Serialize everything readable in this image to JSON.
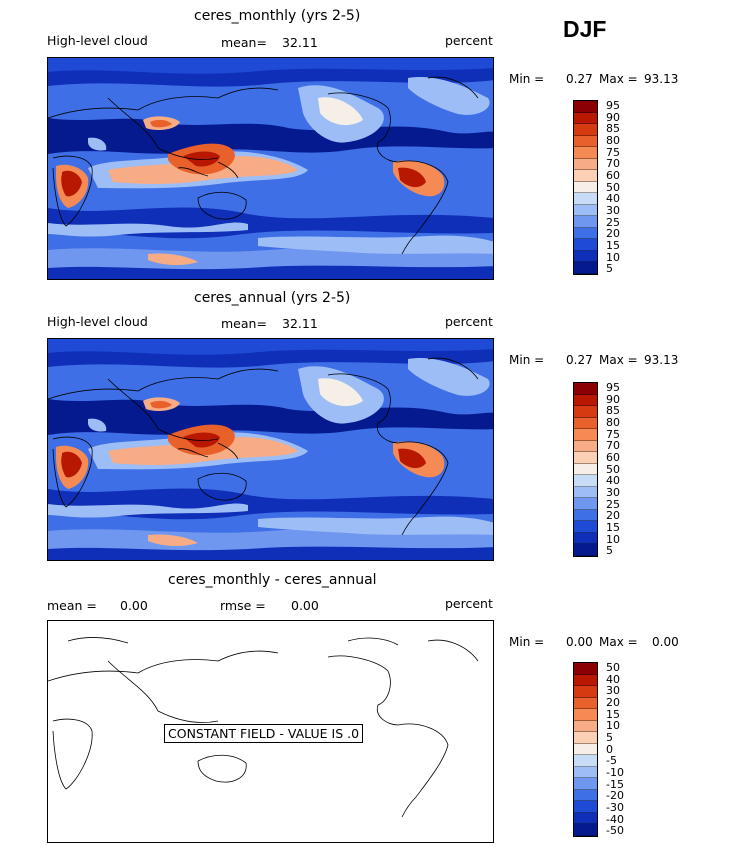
{
  "season": "DJF",
  "panels": [
    {
      "title": "ceres_monthly (yrs 2-5)",
      "left_label": "High-level cloud",
      "mean_label": "mean=",
      "mean_value": "32.11",
      "units": "percent",
      "min_label": "Min =",
      "min_value": "0.27",
      "max_label": "Max =",
      "max_value": "93.13",
      "colorbar_labels": [
        "95",
        "90",
        "85",
        "80",
        "75",
        "70",
        "60",
        "50",
        "40",
        "30",
        "25",
        "20",
        "15",
        "10",
        "5"
      ]
    },
    {
      "title": "ceres_annual (yrs 2-5)",
      "left_label": "High-level cloud",
      "mean_label": "mean=",
      "mean_value": "32.11",
      "units": "percent",
      "min_label": "Min =",
      "min_value": "0.27",
      "max_label": "Max =",
      "max_value": "93.13",
      "colorbar_labels": [
        "95",
        "90",
        "85",
        "80",
        "75",
        "70",
        "60",
        "50",
        "40",
        "30",
        "25",
        "20",
        "15",
        "10",
        "5"
      ]
    },
    {
      "title": "ceres_monthly - ceres_annual",
      "mean_label": "mean =",
      "mean_value": "0.00",
      "rmse_label": "rmse =",
      "rmse_value": "0.00",
      "units": "percent",
      "min_label": "Min =",
      "min_value": "0.00",
      "max_label": "Max =",
      "max_value": "0.00",
      "constant_field_text": "CONSTANT FIELD - VALUE IS .0",
      "colorbar_labels": [
        "50",
        "40",
        "30",
        "20",
        "15",
        "10",
        "5",
        "0",
        "-5",
        "-10",
        "-15",
        "-20",
        "-30",
        "-40",
        "-50"
      ]
    }
  ],
  "colors": {
    "cloud_scale": [
      "#8b0000",
      "#b81800",
      "#d63a10",
      "#e8602a",
      "#f58a55",
      "#f7ac85",
      "#fbd0b5",
      "#f5efe8",
      "#c8dcf8",
      "#9dbdf6",
      "#6f97ef",
      "#3f6fe6",
      "#1f4ad6",
      "#0f2fb8",
      "#061a8f"
    ],
    "diff_scale": [
      "#8b0000",
      "#b81800",
      "#d63a10",
      "#e8602a",
      "#f58a55",
      "#f7ac85",
      "#fbd0b5",
      "#f5efe8",
      "#c8dcf8",
      "#9dbdf6",
      "#6f97ef",
      "#3f6fe6",
      "#1f4ad6",
      "#0f2fb8",
      "#061a8f"
    ],
    "diff_field_fill": "#ffffff"
  }
}
